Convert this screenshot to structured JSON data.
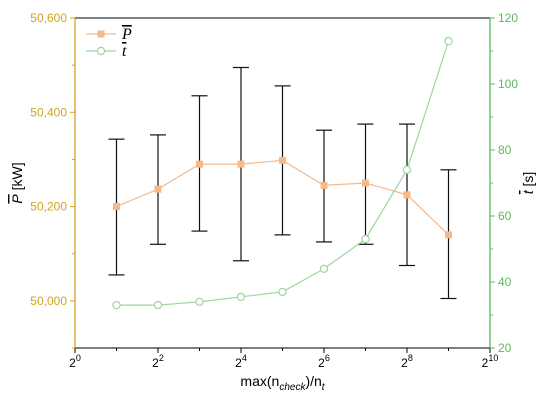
{
  "chart_data": {
    "type": "line",
    "x_scale": "log2",
    "x": [
      2,
      4,
      8,
      16,
      32,
      64,
      128,
      256,
      512
    ],
    "x_ticks": [
      {
        "base": "2",
        "exp": "0"
      },
      {
        "base": "2",
        "exp": "2"
      },
      {
        "base": "2",
        "exp": "4"
      },
      {
        "base": "2",
        "exp": "6"
      },
      {
        "base": "2",
        "exp": "8"
      },
      {
        "base": "2",
        "exp": "10"
      }
    ],
    "xlim": [
      1,
      1024
    ],
    "xlabel": {
      "prefix": "max(n",
      "sub1": "check",
      "mid": ")/n",
      "sub2": "t"
    },
    "left_axis": {
      "label_symbol": "P",
      "label_unit": " [kW]",
      "ylim": [
        49900,
        50600
      ],
      "ticks": [
        50000,
        50200,
        50400,
        50600
      ],
      "tick_labels": [
        "50,000",
        "50,200",
        "50,400",
        "50,600"
      ],
      "color": "#d1a51f"
    },
    "right_axis": {
      "label_symbol": "t",
      "label_unit": " [s]",
      "ylim": [
        20,
        120
      ],
      "ticks": [
        20,
        40,
        60,
        80,
        100,
        120
      ],
      "tick_labels": [
        "20",
        "40",
        "60",
        "80",
        "100",
        "120"
      ],
      "color": "#5cb85c"
    },
    "series": [
      {
        "name": "P",
        "axis": "left",
        "marker": "square",
        "color": "#f5b98a",
        "values": [
          50200,
          50237,
          50290,
          50290,
          50298,
          50245,
          50250,
          50225,
          50140
        ],
        "error_low": [
          50055,
          50120,
          50148,
          50085,
          50140,
          50125,
          50120,
          50075,
          50005
        ],
        "error_high": [
          50343,
          50352,
          50435,
          50495,
          50456,
          50362,
          50375,
          50375,
          50278
        ]
      },
      {
        "name": "t",
        "axis": "right",
        "marker": "circle",
        "color": "#9ed69e",
        "values": [
          33,
          33,
          34,
          35.5,
          37,
          44,
          53,
          74,
          113
        ]
      }
    ],
    "legend": {
      "position": "top-left",
      "entries": [
        {
          "symbol": "P",
          "series": "P"
        },
        {
          "symbol": "t",
          "series": "t"
        }
      ]
    },
    "grid": false,
    "errorbar_color": "#111111"
  }
}
